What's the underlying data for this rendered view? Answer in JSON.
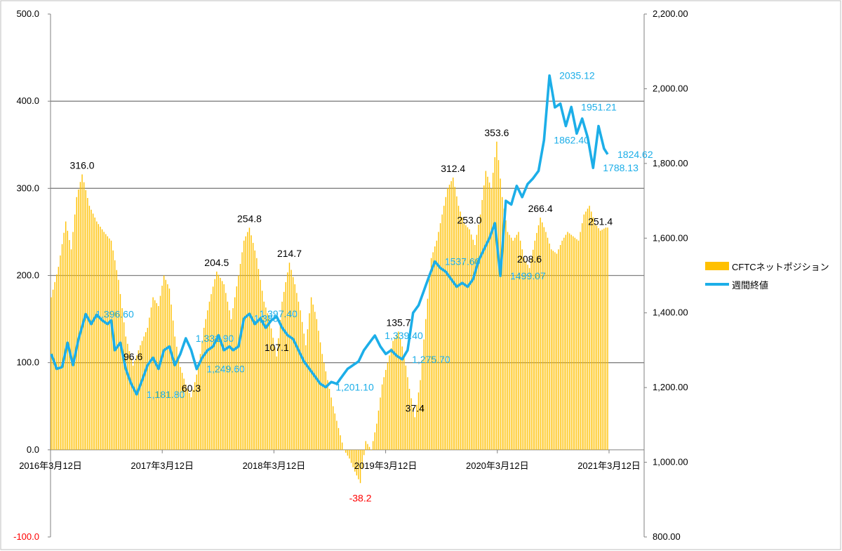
{
  "chart_data": {
    "type": "bar-line-combo",
    "title": "",
    "left_axis": {
      "min": -100,
      "max": 500,
      "ticks": [
        "-100.0",
        "0.0",
        "100.0",
        "200.0",
        "300.0",
        "400.0",
        "500.0"
      ],
      "tick_values": [
        -100,
        0,
        100,
        200,
        300,
        400,
        500
      ]
    },
    "right_axis": {
      "min": 800,
      "max": 2200,
      "ticks": [
        "800.00",
        "1,000.00",
        "1,200.00",
        "1,400.00",
        "1,600.00",
        "1,800.00",
        "2,000.00",
        "2,200.00"
      ],
      "tick_values": [
        800,
        1000,
        1200,
        1400,
        1600,
        1800,
        2000,
        2200
      ]
    },
    "x_axis": {
      "start": "2016-03-12",
      "end": "2021-03-12",
      "ticks": [
        "2016年3月12日",
        "2017年3月12日",
        "2018年3月12日",
        "2019年3月12日",
        "2020年3月12日",
        "2021年3月12日"
      ]
    },
    "gridlines": [
      100,
      200,
      300,
      400
    ],
    "legend": [
      {
        "name": "CFTCネットポジション",
        "color": "#FFC000",
        "kind": "bar"
      },
      {
        "name": "週間終値",
        "color": "#1CAEE8",
        "kind": "line"
      }
    ],
    "series_bar": {
      "name": "CFTCネットポジション",
      "color": "#FFC000",
      "axis": "left",
      "anchors": [
        [
          0,
          175
        ],
        [
          4,
          210
        ],
        [
          8,
          262
        ],
        [
          11,
          230
        ],
        [
          14,
          290
        ],
        [
          17,
          316
        ],
        [
          21,
          280
        ],
        [
          25,
          262
        ],
        [
          29,
          250
        ],
        [
          33,
          240
        ],
        [
          37,
          195
        ],
        [
          41,
          130
        ],
        [
          45,
          96.6
        ],
        [
          49,
          120
        ],
        [
          53,
          140
        ],
        [
          56,
          175
        ],
        [
          59,
          165
        ],
        [
          62,
          200
        ],
        [
          65,
          185
        ],
        [
          68,
          130
        ],
        [
          71,
          95
        ],
        [
          74,
          75
        ],
        [
          77,
          60.3
        ],
        [
          81,
          95
        ],
        [
          84,
          140
        ],
        [
          87,
          170
        ],
        [
          91,
          204.5
        ],
        [
          95,
          190
        ],
        [
          99,
          150
        ],
        [
          103,
          200
        ],
        [
          106,
          240
        ],
        [
          109,
          254.8
        ],
        [
          113,
          220
        ],
        [
          117,
          170
        ],
        [
          120,
          150
        ],
        [
          124,
          107.1
        ],
        [
          127,
          170
        ],
        [
          131,
          214.7
        ],
        [
          134,
          190
        ],
        [
          137,
          160
        ],
        [
          140,
          120
        ],
        [
          143,
          175
        ],
        [
          146,
          150
        ],
        [
          149,
          110
        ],
        [
          152,
          80
        ],
        [
          155,
          50
        ],
        [
          158,
          25
        ],
        [
          161,
          0
        ],
        [
          164,
          -10
        ],
        [
          167,
          -25
        ],
        [
          170,
          -38.2
        ],
        [
          173,
          10
        ],
        [
          176,
          0
        ],
        [
          179,
          30
        ],
        [
          182,
          75
        ],
        [
          185,
          100
        ],
        [
          188,
          125
        ],
        [
          191,
          135.7
        ],
        [
          194,
          110
        ],
        [
          197,
          70
        ],
        [
          200,
          37.4
        ],
        [
          203,
          80
        ],
        [
          206,
          150
        ],
        [
          209,
          220
        ],
        [
          212,
          240
        ],
        [
          215,
          270
        ],
        [
          218,
          300
        ],
        [
          221,
          312.4
        ],
        [
          224,
          280
        ],
        [
          227,
          260
        ],
        [
          230,
          253
        ],
        [
          233,
          235
        ],
        [
          236,
          270
        ],
        [
          239,
          320
        ],
        [
          242,
          300
        ],
        [
          245,
          353.6
        ],
        [
          248,
          290
        ],
        [
          251,
          250
        ],
        [
          254,
          240
        ],
        [
          257,
          250
        ],
        [
          260,
          220
        ],
        [
          263,
          208.6
        ],
        [
          266,
          240
        ],
        [
          269,
          266.4
        ],
        [
          272,
          250
        ],
        [
          275,
          230
        ],
        [
          278,
          225
        ],
        [
          281,
          240
        ],
        [
          284,
          250
        ],
        [
          287,
          245
        ],
        [
          290,
          240
        ],
        [
          293,
          270
        ],
        [
          296,
          280
        ],
        [
          299,
          260
        ],
        [
          302,
          251.4
        ],
        [
          305,
          255
        ]
      ]
    },
    "series_line": {
      "name": "週間終値",
      "color": "#1CAEE8",
      "axis": "right",
      "anchors": [
        [
          0,
          1290
        ],
        [
          3,
          1250
        ],
        [
          6,
          1255
        ],
        [
          9,
          1320
        ],
        [
          12,
          1260
        ],
        [
          15,
          1330
        ],
        [
          19,
          1396.6
        ],
        [
          22,
          1370
        ],
        [
          25,
          1395
        ],
        [
          28,
          1380
        ],
        [
          31,
          1370
        ],
        [
          33,
          1380
        ],
        [
          35,
          1300
        ],
        [
          38,
          1320
        ],
        [
          41,
          1250
        ],
        [
          44,
          1210
        ],
        [
          47,
          1181.8
        ],
        [
          50,
          1220
        ],
        [
          53,
          1260
        ],
        [
          56,
          1280
        ],
        [
          59,
          1250
        ],
        [
          62,
          1300
        ],
        [
          65,
          1310
        ],
        [
          68,
          1260
        ],
        [
          71,
          1290
        ],
        [
          74,
          1331.9
        ],
        [
          77,
          1300
        ],
        [
          80,
          1249.6
        ],
        [
          83,
          1280
        ],
        [
          86,
          1300
        ],
        [
          89,
          1310
        ],
        [
          92,
          1340
        ],
        [
          95,
          1300
        ],
        [
          98,
          1310
        ],
        [
          100,
          1300
        ],
        [
          103,
          1310
        ],
        [
          106,
          1385
        ],
        [
          109,
          1397.4
        ],
        [
          112,
          1370
        ],
        [
          115,
          1385
        ],
        [
          118,
          1360
        ],
        [
          121,
          1380
        ],
        [
          124,
          1390
        ],
        [
          127,
          1360
        ],
        [
          130,
          1340
        ],
        [
          133,
          1330
        ],
        [
          136,
          1300
        ],
        [
          139,
          1270
        ],
        [
          142,
          1250
        ],
        [
          145,
          1230
        ],
        [
          148,
          1210
        ],
        [
          151,
          1201.1
        ],
        [
          154,
          1215
        ],
        [
          157,
          1210
        ],
        [
          160,
          1230
        ],
        [
          163,
          1250
        ],
        [
          166,
          1260
        ],
        [
          169,
          1270
        ],
        [
          172,
          1300
        ],
        [
          175,
          1320
        ],
        [
          178,
          1339.4
        ],
        [
          181,
          1310
        ],
        [
          184,
          1290
        ],
        [
          187,
          1300
        ],
        [
          190,
          1285
        ],
        [
          193,
          1275.7
        ],
        [
          196,
          1300
        ],
        [
          199,
          1400
        ],
        [
          202,
          1420
        ],
        [
          205,
          1460
        ],
        [
          208,
          1500
        ],
        [
          211,
          1537.6
        ],
        [
          214,
          1520
        ],
        [
          217,
          1510
        ],
        [
          220,
          1490
        ],
        [
          223,
          1470
        ],
        [
          226,
          1480
        ],
        [
          229,
          1470
        ],
        [
          232,
          1490
        ],
        [
          235,
          1540
        ],
        [
          238,
          1570
        ],
        [
          241,
          1600
        ],
        [
          244,
          1640
        ],
        [
          247,
          1499.07
        ],
        [
          250,
          1700
        ],
        [
          253,
          1690
        ],
        [
          256,
          1740
        ],
        [
          259,
          1710
        ],
        [
          262,
          1745
        ],
        [
          265,
          1760
        ],
        [
          268,
          1780
        ],
        [
          271,
          1862.4
        ],
        [
          274,
          2035.12
        ],
        [
          277,
          1950
        ],
        [
          280,
          1960
        ],
        [
          283,
          1900
        ],
        [
          286,
          1951.21
        ],
        [
          289,
          1880
        ],
        [
          292,
          1920
        ],
        [
          295,
          1870
        ],
        [
          298,
          1788.13
        ],
        [
          301,
          1900
        ],
        [
          304,
          1840
        ],
        [
          306,
          1824.62
        ]
      ]
    },
    "bar_labels": [
      {
        "text": "316.0",
        "i": 17,
        "v": 316.0,
        "color": "#000000"
      },
      {
        "text": "96.6",
        "i": 45,
        "v": 96.6,
        "color": "#000000"
      },
      {
        "text": "60.3",
        "i": 77,
        "v": 60.3,
        "color": "#000000"
      },
      {
        "text": "204.5",
        "i": 91,
        "v": 204.5,
        "color": "#000000"
      },
      {
        "text": "254.8",
        "i": 109,
        "v": 254.8,
        "color": "#000000"
      },
      {
        "text": "107.1",
        "i": 124,
        "v": 107.1,
        "color": "#000000"
      },
      {
        "text": "214.7",
        "i": 131,
        "v": 214.7,
        "color": "#000000"
      },
      {
        "text": "-38.2",
        "i": 170,
        "v": -38.2,
        "color": "#FF0000"
      },
      {
        "text": "135.7",
        "i": 191,
        "v": 135.7,
        "color": "#000000"
      },
      {
        "text": "37.4",
        "i": 200,
        "v": 37.4,
        "color": "#000000"
      },
      {
        "text": "312.4",
        "i": 221,
        "v": 312.4,
        "color": "#000000"
      },
      {
        "text": "253.0",
        "i": 230,
        "v": 253.0,
        "color": "#000000"
      },
      {
        "text": "353.6",
        "i": 245,
        "v": 353.6,
        "color": "#000000"
      },
      {
        "text": "208.6",
        "i": 263,
        "v": 208.6,
        "color": "#000000"
      },
      {
        "text": "266.4",
        "i": 269,
        "v": 266.4,
        "color": "#000000"
      },
      {
        "text": "251.4",
        "i": 302,
        "v": 251.4,
        "color": "#000000"
      }
    ],
    "line_labels": [
      {
        "text": "1,396.60",
        "i": 19,
        "v": 1396.6
      },
      {
        "text": "1,181.80",
        "i": 47,
        "v": 1181.8
      },
      {
        "text": "1,331.90",
        "i": 74,
        "v": 1331.9
      },
      {
        "text": "1,249.60",
        "i": 80,
        "v": 1249.6
      },
      {
        "text": "1,385",
        "i": 106,
        "v": 1385
      },
      {
        "text": "1,397.40",
        "i": 109,
        "v": 1397.4
      },
      {
        "text": "1,201.10",
        "i": 151,
        "v": 1201.1
      },
      {
        "text": "1,339.40",
        "i": 178,
        "v": 1339.4
      },
      {
        "text": "1,275.70",
        "i": 193,
        "v": 1275.7
      },
      {
        "text": "1537.60",
        "i": 211,
        "v": 1537.6
      },
      {
        "text": "1499.07",
        "i": 247,
        "v": 1499.07
      },
      {
        "text": "1862.40",
        "i": 271,
        "v": 1862.4
      },
      {
        "text": "2035.12",
        "i": 274,
        "v": 2035.12
      },
      {
        "text": "1951.21",
        "i": 286,
        "v": 1951.21
      },
      {
        "text": "1788.13",
        "i": 298,
        "v": 1788.13
      },
      {
        "text": "1824.62",
        "i": 306,
        "v": 1824.62
      }
    ],
    "n_weeks": 307
  }
}
